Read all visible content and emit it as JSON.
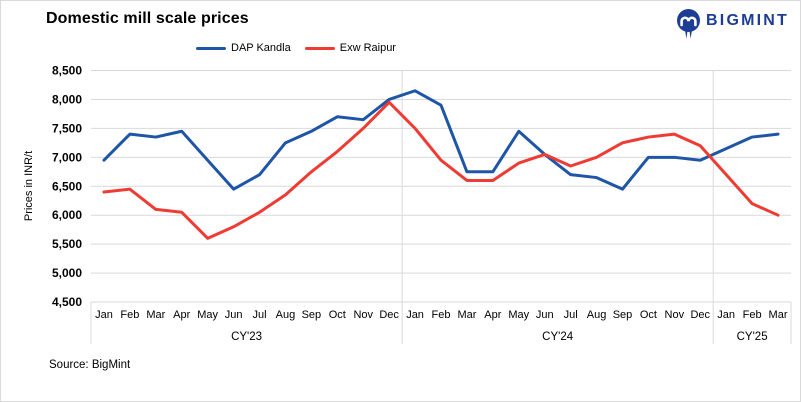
{
  "title": "Domestic mill scale prices",
  "brand": {
    "name": "BIGMINT",
    "color": "#1d3e94",
    "icon": "bigmint-walrus-icon"
  },
  "source": "Source: BigMint",
  "colors": {
    "blue": "#1f55a6",
    "red": "#ee3b33",
    "grid": "#d9d9d9",
    "text": "#000000"
  },
  "legend": [
    {
      "label": "DAP Kandla",
      "color": "#1f55a6"
    },
    {
      "label": "Exw Raipur",
      "color": "#ee3b33"
    }
  ],
  "chart_data": {
    "type": "line",
    "title": "Domestic mill scale prices",
    "xlabel": "",
    "ylabel": "Prices in INR/t",
    "ylim": [
      4500,
      8500
    ],
    "ytick_step": 500,
    "grid": true,
    "legend_position": "top",
    "categories": [
      "Jan",
      "Feb",
      "Mar",
      "Apr",
      "May",
      "Jun",
      "Jul",
      "Aug",
      "Sep",
      "Oct",
      "Nov",
      "Dec",
      "Jan",
      "Feb",
      "Mar",
      "Apr",
      "May",
      "Jun",
      "Jul",
      "Aug",
      "Sep",
      "Oct",
      "Nov",
      "Dec",
      "Jan",
      "Feb",
      "Mar"
    ],
    "year_groups": [
      {
        "label": "CY'23",
        "count": 12
      },
      {
        "label": "CY'24",
        "count": 12
      },
      {
        "label": "CY'25",
        "count": 3
      }
    ],
    "series": [
      {
        "name": "DAP Kandla",
        "color": "#1f55a6",
        "values": [
          6950,
          7400,
          7350,
          7450,
          6950,
          6450,
          6700,
          7250,
          7450,
          7700,
          7650,
          8000,
          8150,
          7900,
          6750,
          6750,
          7450,
          7050,
          6700,
          6650,
          6450,
          7000,
          7000,
          6950,
          7150,
          7350,
          7400
        ]
      },
      {
        "name": "Exw Raipur",
        "color": "#ee3b33",
        "values": [
          6400,
          6450,
          6100,
          6050,
          5600,
          5800,
          6050,
          6350,
          6750,
          7100,
          7500,
          7950,
          7500,
          6950,
          6600,
          6600,
          6900,
          7050,
          6850,
          7000,
          7250,
          7350,
          7400,
          7200,
          6700,
          6200,
          6000
        ]
      }
    ]
  }
}
